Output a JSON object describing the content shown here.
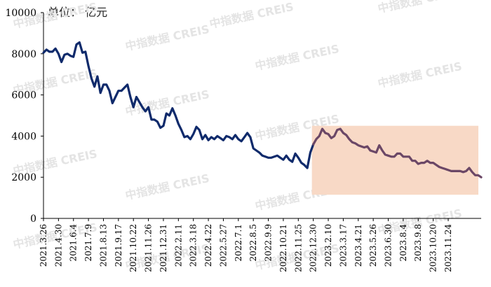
{
  "unit_label": "单位： 亿元",
  "watermark": "中指数据 CREIS",
  "chart_data": {
    "type": "line",
    "yticks": [
      0,
      2000,
      4000,
      6000,
      8000,
      10000
    ],
    "ylim": [
      0,
      10000
    ],
    "x_tick_labels": [
      "2021.3.26",
      "2021.4.30",
      "2021.6.4",
      "2021.7.9",
      "2021.8.13",
      "2021.9.17",
      "2021.10.22",
      "2021.11.26",
      "2021.12.31",
      "2022.2.11",
      "2022.3.18",
      "2022.4.22",
      "2022.5.27",
      "2022.7.1",
      "2022.8.5",
      "2022.9.9",
      "2022.10.21",
      "2022.11.25",
      "2022.12.30",
      "2023.2.10",
      "2023.3.17",
      "2023.4.21",
      "2023.5.26",
      "2023.6.30",
      "2023.8.4",
      "2023.9.8",
      "2023.10.20",
      "2023.11.24"
    ],
    "highlight_start_index": 90,
    "colors": {
      "line_2021_2022": "#0f2a6b",
      "line_2023": "#6b4766",
      "highlight": "#f8d9c6"
    },
    "values": [
      8050,
      8200,
      8100,
      8100,
      8250,
      8000,
      7600,
      7950,
      8000,
      7900,
      7850,
      8450,
      8550,
      8050,
      8100,
      7400,
      6800,
      6400,
      6900,
      6100,
      6500,
      6500,
      6200,
      5600,
      5900,
      6200,
      6200,
      6350,
      6500,
      5900,
      5400,
      5900,
      5650,
      5400,
      5200,
      5400,
      4800,
      4800,
      4700,
      4400,
      4500,
      5100,
      5000,
      5350,
      5000,
      4600,
      4300,
      3950,
      4000,
      3850,
      4100,
      4450,
      4300,
      3850,
      4050,
      3800,
      3950,
      3850,
      4000,
      3900,
      3800,
      4000,
      3950,
      3850,
      4050,
      3850,
      3750,
      3950,
      4150,
      3950,
      3400,
      3300,
      3200,
      3050,
      3000,
      2950,
      2950,
      3000,
      3050,
      2950,
      2850,
      3050,
      2850,
      2750,
      3150,
      2950,
      2700,
      2600,
      2450,
      3200,
      3600,
      3850,
      4000,
      4350,
      4150,
      4100,
      3900,
      4000,
      4300,
      4350,
      4150,
      4050,
      3850,
      3700,
      3650,
      3550,
      3500,
      3450,
      3500,
      3300,
      3250,
      3200,
      3550,
      3300,
      3100,
      3050,
      3000,
      3000,
      3150,
      3150,
      3000,
      3000,
      3000,
      2800,
      2800,
      2650,
      2700,
      2700,
      2800,
      2700,
      2700,
      2600,
      2500,
      2450,
      2400,
      2350,
      2300,
      2300,
      2300,
      2300,
      2250,
      2300,
      2450,
      2250,
      2100,
      2100,
      2000
    ]
  }
}
